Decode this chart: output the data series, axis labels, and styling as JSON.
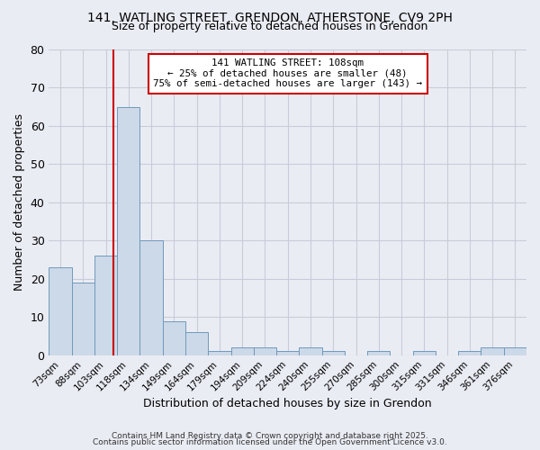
{
  "title_line1": "141, WATLING STREET, GRENDON, ATHERSTONE, CV9 2PH",
  "title_line2": "Size of property relative to detached houses in Grendon",
  "xlabel": "Distribution of detached houses by size in Grendon",
  "ylabel": "Number of detached properties",
  "bar_labels": [
    "73sqm",
    "88sqm",
    "103sqm",
    "118sqm",
    "134sqm",
    "149sqm",
    "164sqm",
    "179sqm",
    "194sqm",
    "209sqm",
    "224sqm",
    "240sqm",
    "255sqm",
    "270sqm",
    "285sqm",
    "300sqm",
    "315sqm",
    "331sqm",
    "346sqm",
    "361sqm",
    "376sqm"
  ],
  "bar_values": [
    23,
    19,
    26,
    65,
    30,
    9,
    6,
    1,
    2,
    2,
    1,
    2,
    1,
    0,
    1,
    0,
    1,
    0,
    1,
    2,
    2
  ],
  "bar_color": "#ccd9e8",
  "bar_edge_color": "#7099bb",
  "bar_edge_width": 0.7,
  "red_line_color": "#cc0000",
  "annotation_text": "141 WATLING STREET: 108sqm\n← 25% of detached houses are smaller (48)\n75% of semi-detached houses are larger (143) →",
  "annotation_box_color": "#ffffff",
  "annotation_box_edge": "#cc0000",
  "ylim": [
    0,
    80
  ],
  "yticks": [
    0,
    10,
    20,
    30,
    40,
    50,
    60,
    70,
    80
  ],
  "grid_color": "#c8ccd8",
  "bg_color": "#eaecf4",
  "footnote1": "Contains HM Land Registry data © Crown copyright and database right 2025.",
  "footnote2": "Contains public sector information licensed under the Open Government Licence v3.0."
}
